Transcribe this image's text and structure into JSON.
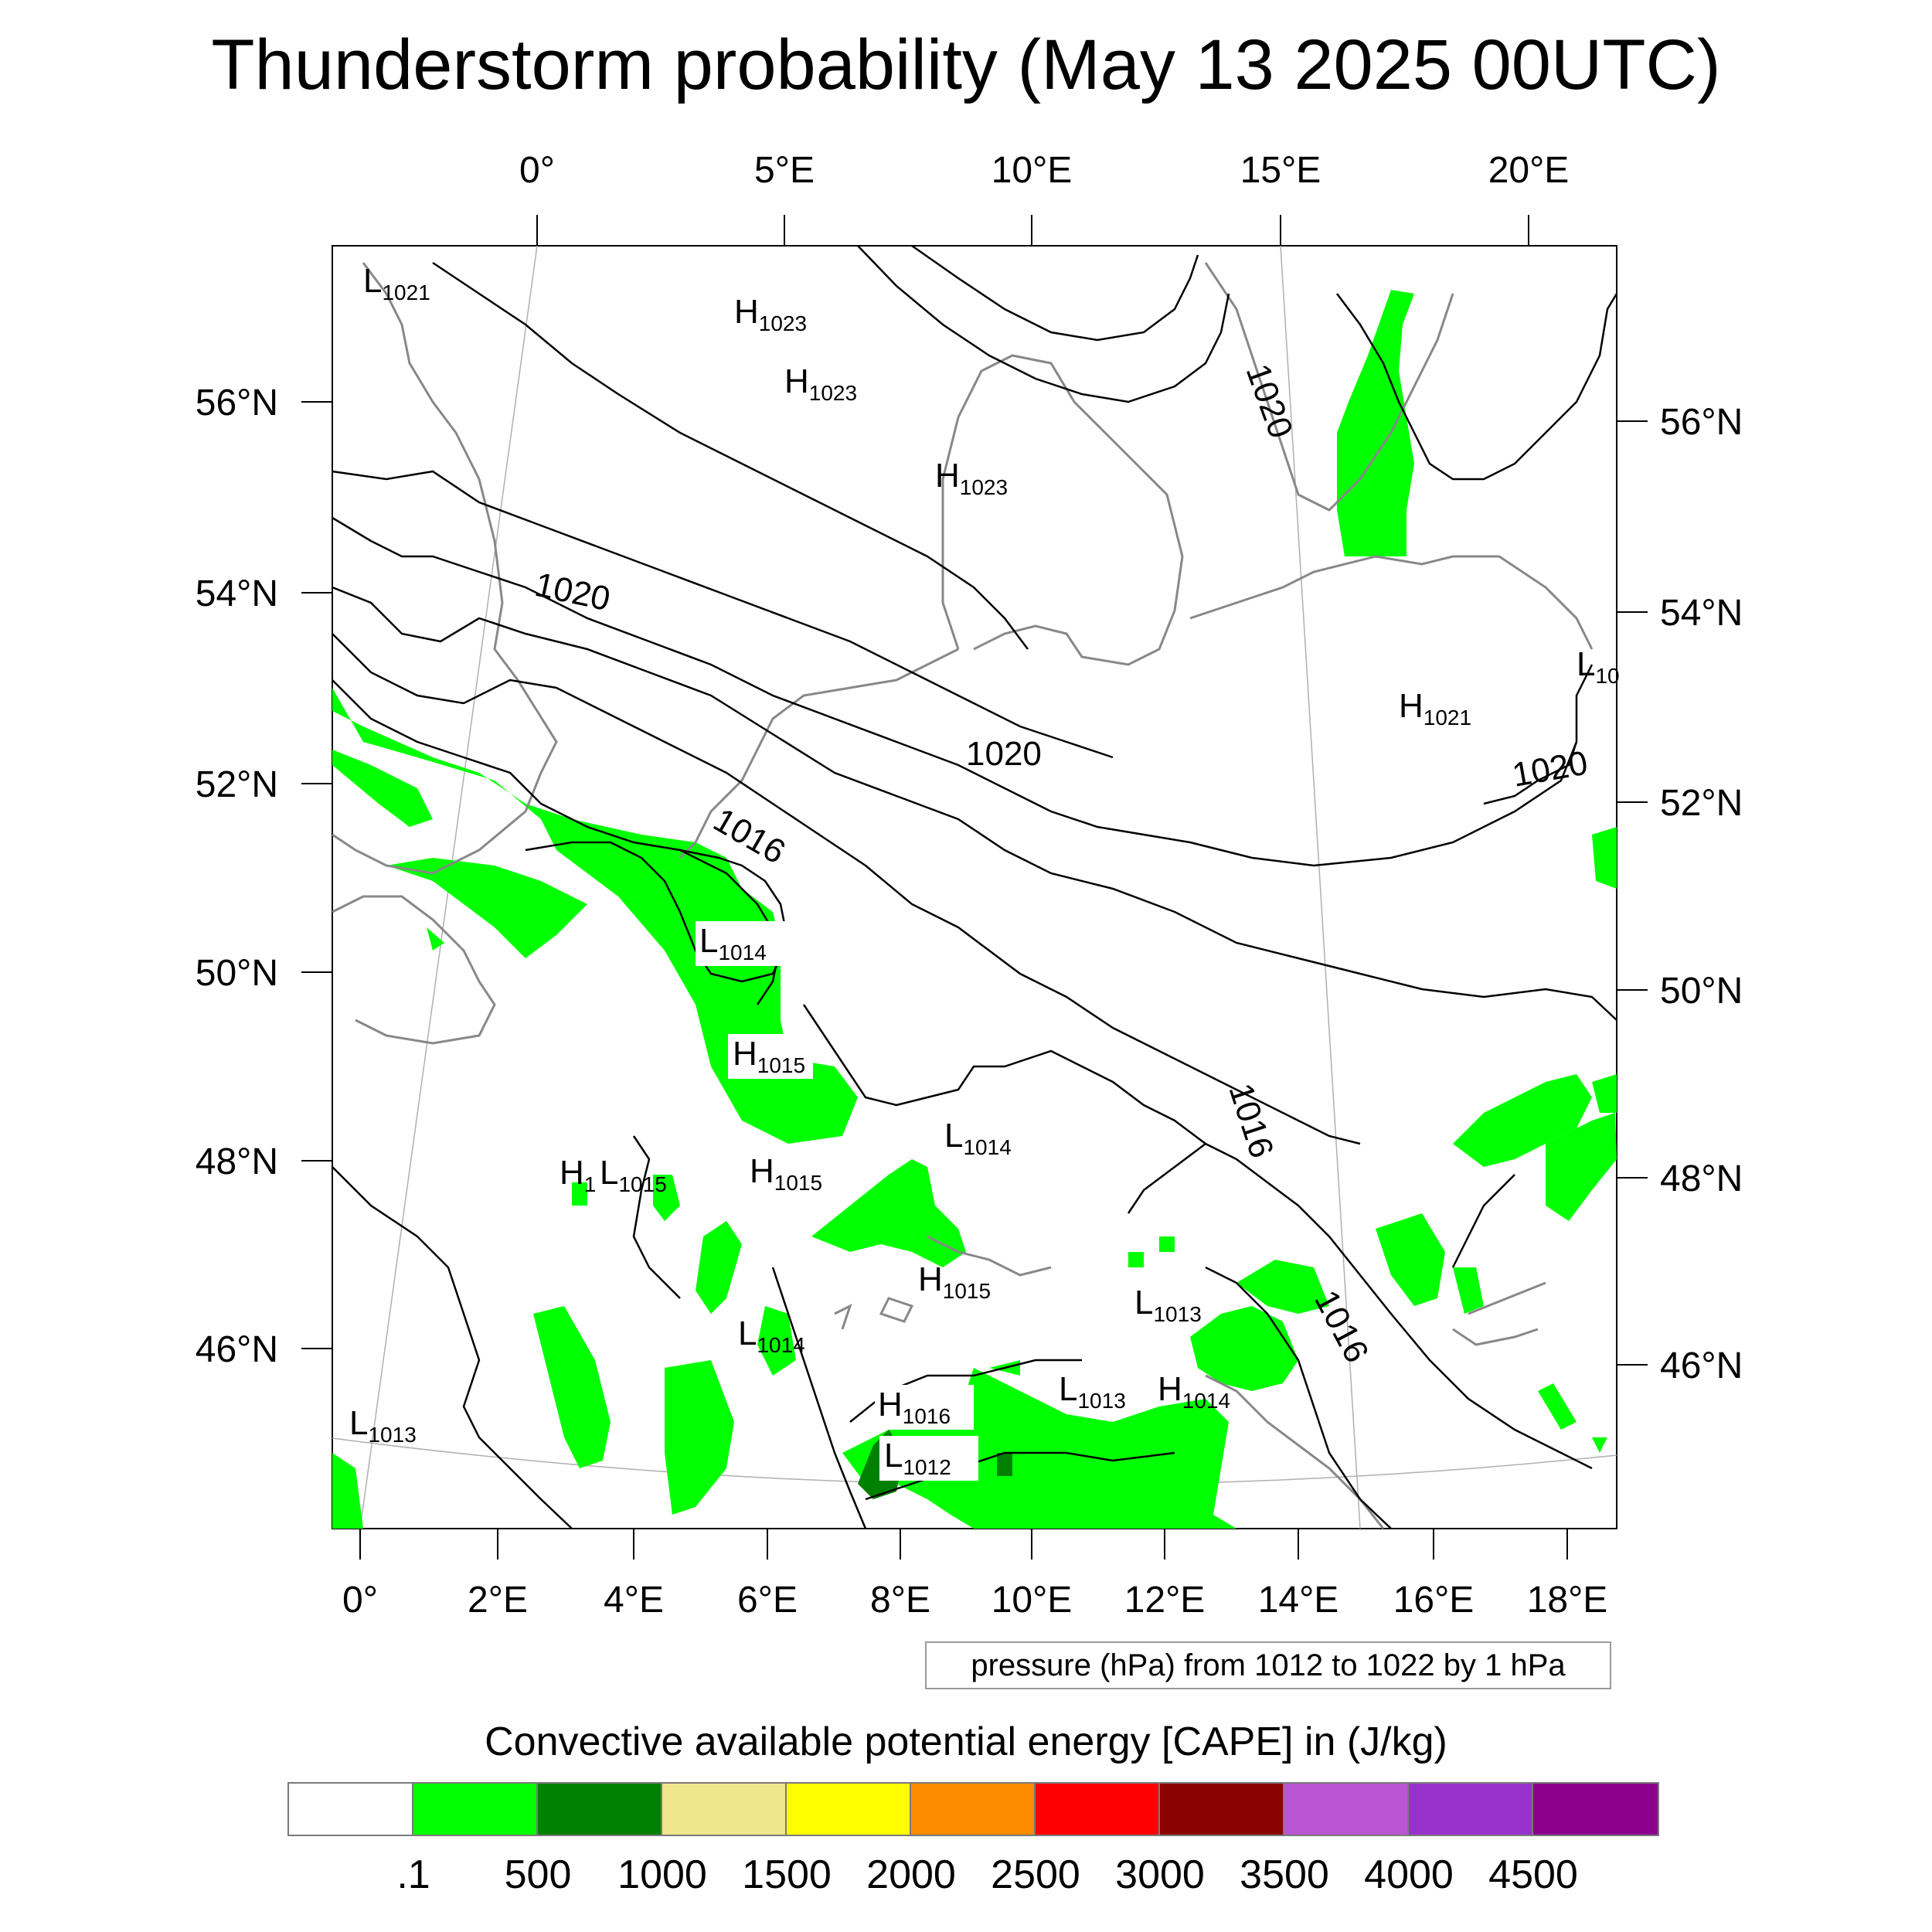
{
  "title": "Thunderstorm probability (May 13 2025 00UTC)",
  "map": {
    "top_axis_labels": [
      "0°",
      "5°E",
      "10°E",
      "15°E",
      "20°E"
    ],
    "bottom_axis_labels": [
      "0°",
      "2°E",
      "4°E",
      "6°E",
      "8°E",
      "10°E",
      "12°E",
      "14°E",
      "16°E",
      "18°E"
    ],
    "left_axis_labels": [
      "56°N",
      "54°N",
      "52°N",
      "50°N",
      "48°N",
      "46°N"
    ],
    "right_axis_labels": [
      "56°N",
      "54°N",
      "52°N",
      "50°N",
      "48°N",
      "46°N"
    ],
    "contour_labels": [
      "1020",
      "1020",
      "1020",
      "1020",
      "1016",
      "1016",
      "1016"
    ],
    "pressure_centers": [
      {
        "type": "L",
        "value": "1021"
      },
      {
        "type": "H",
        "value": "1023"
      },
      {
        "type": "H",
        "value": "1023"
      },
      {
        "type": "H",
        "value": "1023"
      },
      {
        "type": "H",
        "value": "1021"
      },
      {
        "type": "L",
        "value": "10"
      },
      {
        "type": "L",
        "value": "1014"
      },
      {
        "type": "H",
        "value": "1015"
      },
      {
        "type": "L",
        "value": "1014"
      },
      {
        "type": "H",
        "value": "1"
      },
      {
        "type": "L",
        "value": "1015"
      },
      {
        "type": "H",
        "value": "1015"
      },
      {
        "type": "H",
        "value": "1015"
      },
      {
        "type": "L",
        "value": "1013"
      },
      {
        "type": "L",
        "value": "1014"
      },
      {
        "type": "H",
        "value": "1016"
      },
      {
        "type": "L",
        "value": "1013"
      },
      {
        "type": "H",
        "value": "1014"
      },
      {
        "type": "L",
        "value": "1012"
      },
      {
        "type": "L",
        "value": "1013"
      }
    ]
  },
  "contour_info": "pressure (hPa) from 1012 to 1022 by 1 hPa",
  "legend": {
    "title": "Convective available potential energy [CAPE] in (J/kg)",
    "colors": [
      "#ffffff",
      "#00ff00",
      "#008000",
      "#f0e68c",
      "#ffff00",
      "#ff8c00",
      "#ff0000",
      "#8b0000",
      "#ba55d3",
      "#9932cc",
      "#8b008b"
    ],
    "labels": [
      ".1",
      "500",
      "1000",
      "1500",
      "2000",
      "2500",
      "3000",
      "3500",
      "4000",
      "4500"
    ]
  },
  "colors": {
    "cape_low": "#00ff00",
    "cape_mid": "#008000",
    "coastline": "#888888",
    "isobar": "#000000",
    "grid": "#b0b0b0"
  }
}
